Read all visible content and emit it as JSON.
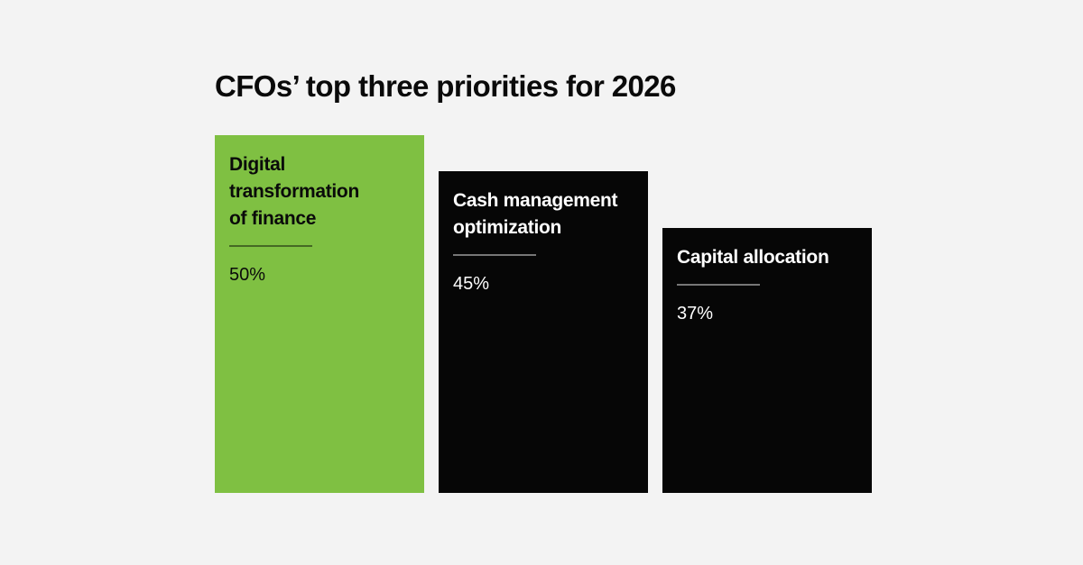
{
  "title": "CFOs’ top three priorities for 2026",
  "colors": {
    "background": "#f3f3f3",
    "highlight": "#7fc042",
    "default_bar": "#060606",
    "text_on_highlight": "#0a0a0a",
    "text_on_default": "#ffffff"
  },
  "chart_data": {
    "type": "bar",
    "title": "CFOs’ top three priorities for 2026",
    "xlabel": "",
    "ylabel": "",
    "unit": "%",
    "ylim": [
      0,
      50
    ],
    "categories": [
      "Digital transformation of finance",
      "Cash management optimization",
      "Capital allocation"
    ],
    "values": [
      50,
      45,
      37
    ],
    "bars": [
      {
        "label": "Digital\ntransformation\nof finance",
        "value": 50,
        "value_label": "50%",
        "color": "#7fc042"
      },
      {
        "label": "Cash management\noptimization",
        "value": 45,
        "value_label": "45%",
        "color": "#060606"
      },
      {
        "label": "Capital allocation",
        "value": 37,
        "value_label": "37%",
        "color": "#060606"
      }
    ]
  }
}
